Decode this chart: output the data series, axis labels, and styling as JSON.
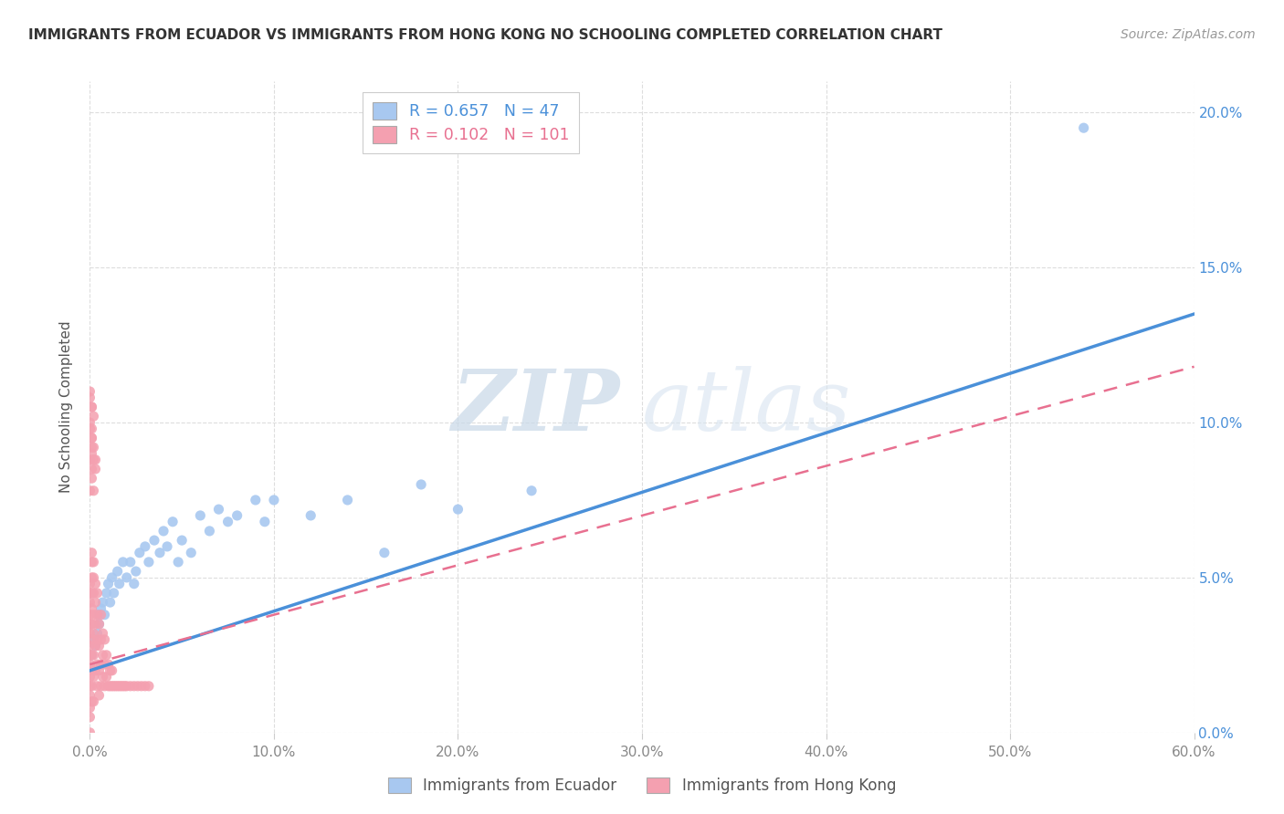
{
  "title": "IMMIGRANTS FROM ECUADOR VS IMMIGRANTS FROM HONG KONG NO SCHOOLING COMPLETED CORRELATION CHART",
  "source": "Source: ZipAtlas.com",
  "ylabel_label": "No Schooling Completed",
  "xlim": [
    0.0,
    0.6
  ],
  "ylim": [
    0.0,
    0.21
  ],
  "legend_ecuador_R": "0.657",
  "legend_ecuador_N": "47",
  "legend_hongkong_R": "0.102",
  "legend_hongkong_N": "101",
  "color_ecuador": "#a8c8f0",
  "color_hongkong": "#f4a0b0",
  "trendline_ecuador_color": "#4a90d9",
  "trendline_hongkong_color": "#e87090",
  "watermark_zip": "ZIP",
  "watermark_atlas": "atlas",
  "background_color": "#ffffff",
  "grid_color": "#dddddd",
  "ecuador_x": [
    0.001,
    0.002,
    0.003,
    0.004,
    0.005,
    0.005,
    0.006,
    0.007,
    0.008,
    0.009,
    0.01,
    0.011,
    0.012,
    0.013,
    0.015,
    0.016,
    0.018,
    0.02,
    0.022,
    0.024,
    0.025,
    0.027,
    0.03,
    0.032,
    0.035,
    0.038,
    0.04,
    0.042,
    0.045,
    0.048,
    0.05,
    0.055,
    0.06,
    0.065,
    0.07,
    0.075,
    0.08,
    0.09,
    0.095,
    0.1,
    0.12,
    0.14,
    0.16,
    0.18,
    0.2,
    0.24,
    0.54
  ],
  "ecuador_y": [
    0.025,
    0.03,
    0.028,
    0.032,
    0.035,
    0.038,
    0.04,
    0.042,
    0.038,
    0.045,
    0.048,
    0.042,
    0.05,
    0.045,
    0.052,
    0.048,
    0.055,
    0.05,
    0.055,
    0.048,
    0.052,
    0.058,
    0.06,
    0.055,
    0.062,
    0.058,
    0.065,
    0.06,
    0.068,
    0.055,
    0.062,
    0.058,
    0.07,
    0.065,
    0.072,
    0.068,
    0.07,
    0.075,
    0.068,
    0.075,
    0.07,
    0.075,
    0.058,
    0.08,
    0.072,
    0.078,
    0.195
  ],
  "hongkong_x": [
    0.0,
    0.0,
    0.0,
    0.0,
    0.0,
    0.0,
    0.0,
    0.0,
    0.0,
    0.0,
    0.0,
    0.0,
    0.0,
    0.0,
    0.0,
    0.001,
    0.001,
    0.001,
    0.001,
    0.001,
    0.001,
    0.001,
    0.001,
    0.001,
    0.001,
    0.001,
    0.002,
    0.002,
    0.002,
    0.002,
    0.002,
    0.002,
    0.002,
    0.002,
    0.003,
    0.003,
    0.003,
    0.003,
    0.003,
    0.004,
    0.004,
    0.004,
    0.004,
    0.004,
    0.005,
    0.005,
    0.005,
    0.005,
    0.006,
    0.006,
    0.006,
    0.006,
    0.007,
    0.007,
    0.007,
    0.008,
    0.008,
    0.008,
    0.009,
    0.009,
    0.01,
    0.01,
    0.011,
    0.011,
    0.012,
    0.012,
    0.013,
    0.014,
    0.015,
    0.016,
    0.017,
    0.018,
    0.019,
    0.02,
    0.022,
    0.024,
    0.026,
    0.028,
    0.03,
    0.032,
    0.001,
    0.001,
    0.002,
    0.002,
    0.003,
    0.003,
    0.001,
    0.002,
    0.0,
    0.001,
    0.0,
    0.001,
    0.002,
    0.001,
    0.0,
    0.001,
    0.0,
    0.001,
    0.0,
    0.001,
    0.0
  ],
  "hongkong_y": [
    0.0,
    0.005,
    0.008,
    0.012,
    0.015,
    0.018,
    0.022,
    0.025,
    0.028,
    0.032,
    0.035,
    0.038,
    0.042,
    0.045,
    0.048,
    0.01,
    0.015,
    0.02,
    0.025,
    0.03,
    0.035,
    0.04,
    0.045,
    0.05,
    0.055,
    0.058,
    0.01,
    0.018,
    0.025,
    0.032,
    0.038,
    0.045,
    0.05,
    0.055,
    0.02,
    0.028,
    0.035,
    0.042,
    0.048,
    0.015,
    0.022,
    0.03,
    0.038,
    0.045,
    0.012,
    0.02,
    0.028,
    0.035,
    0.015,
    0.022,
    0.03,
    0.038,
    0.018,
    0.025,
    0.032,
    0.015,
    0.022,
    0.03,
    0.018,
    0.025,
    0.015,
    0.022,
    0.015,
    0.02,
    0.015,
    0.02,
    0.015,
    0.015,
    0.015,
    0.015,
    0.015,
    0.015,
    0.015,
    0.015,
    0.015,
    0.015,
    0.015,
    0.015,
    0.015,
    0.015,
    0.09,
    0.095,
    0.088,
    0.092,
    0.085,
    0.088,
    0.082,
    0.078,
    0.1,
    0.098,
    0.108,
    0.105,
    0.102,
    0.095,
    0.11,
    0.105,
    0.098,
    0.092,
    0.088,
    0.085,
    0.078
  ],
  "ecuador_trend_x0": 0.0,
  "ecuador_trend_y0": 0.02,
  "ecuador_trend_x1": 0.6,
  "ecuador_trend_y1": 0.135,
  "hongkong_trend_x0": 0.0,
  "hongkong_trend_y0": 0.022,
  "hongkong_trend_x1": 0.6,
  "hongkong_trend_y1": 0.118
}
